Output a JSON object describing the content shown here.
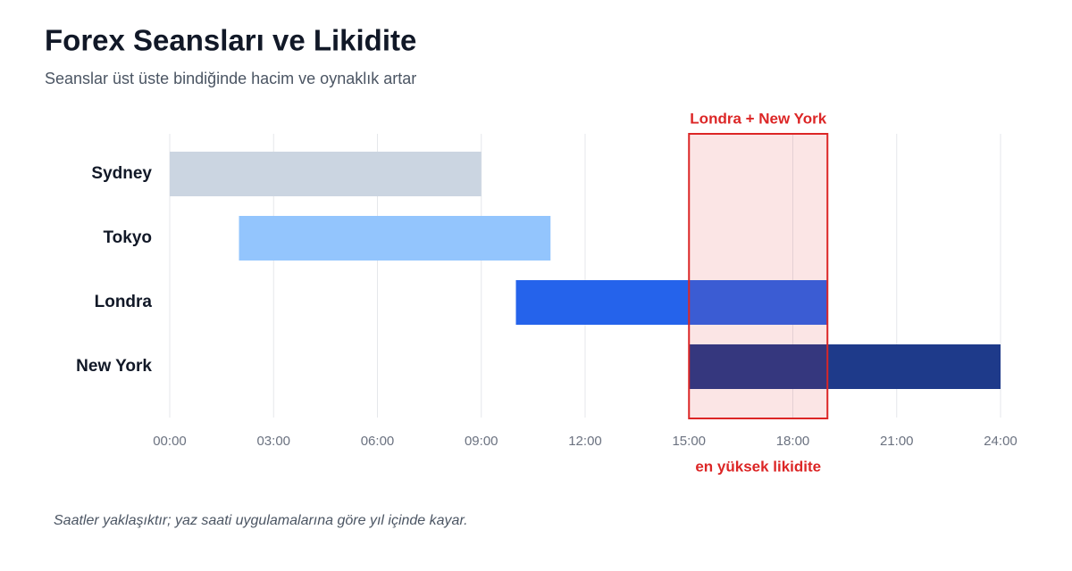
{
  "chart_data": {
    "type": "floating-bar",
    "title": "Forex Seansları ve Likidite",
    "subtitle": "Seanslar üst üste bindiğinde hacim ve oynaklık artar",
    "categories": [
      "Sydney",
      "Tokyo",
      "Londra",
      "New York"
    ],
    "start": [
      0,
      2,
      10,
      15
    ],
    "end": [
      9,
      11,
      19,
      24
    ],
    "colors": [
      "#cbd5e1",
      "#93c5fd",
      "#2563eb",
      "#1e3a8a"
    ],
    "xlim": [
      0,
      24
    ],
    "xticks": [
      {
        "value": 0,
        "label": "00:00"
      },
      {
        "value": 3,
        "label": "03:00"
      },
      {
        "value": 6,
        "label": "06:00"
      },
      {
        "value": 9,
        "label": "09:00"
      },
      {
        "value": 12,
        "label": "12:00"
      },
      {
        "value": 15,
        "label": "15:00"
      },
      {
        "value": 18,
        "label": "18:00"
      },
      {
        "value": 21,
        "label": "21:00"
      },
      {
        "value": 24,
        "label": "24:00"
      }
    ],
    "grid": true,
    "highlight": {
      "start": 15,
      "end": 19,
      "label": "Londra + New York",
      "note": "en yüksek likidite",
      "color": "#dc2626"
    },
    "footnote": "Saatler yaklaşıktır; yaz saati uygulamalarına göre yıl içinde kayar."
  }
}
